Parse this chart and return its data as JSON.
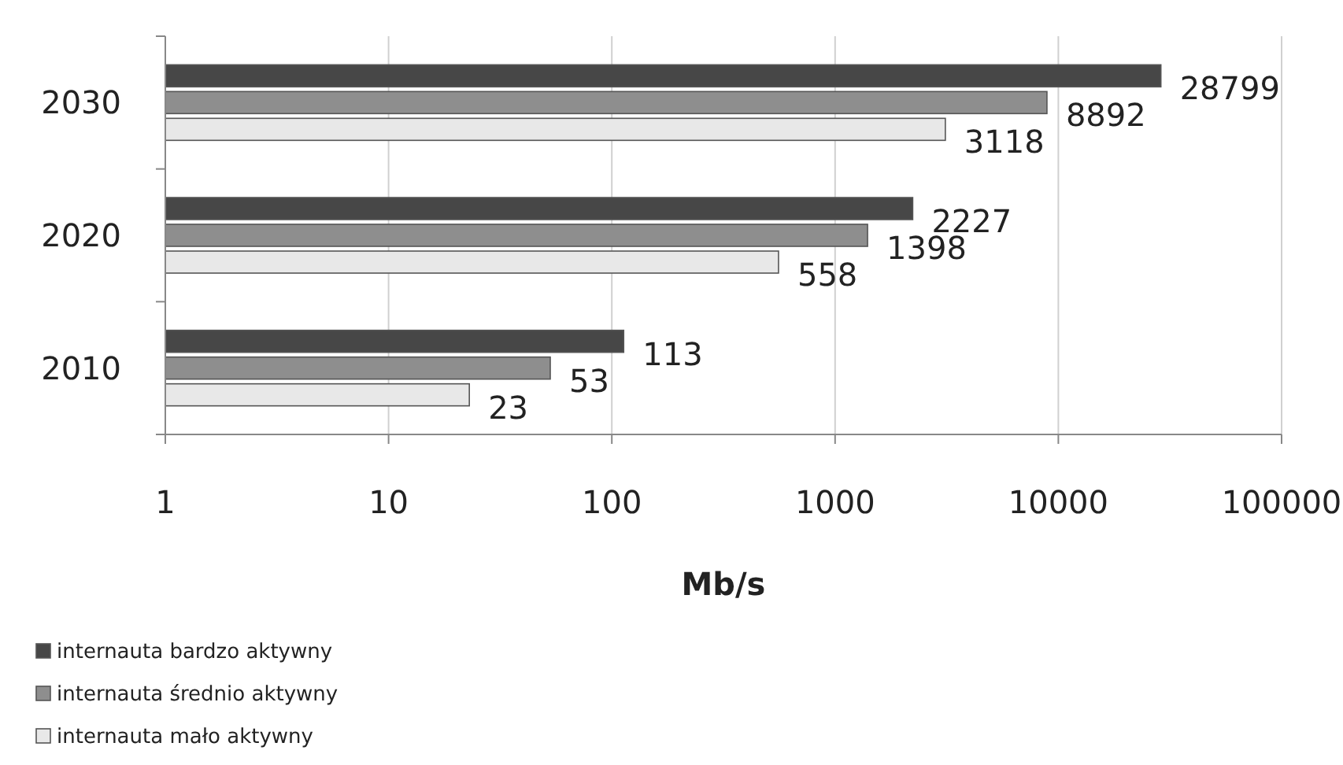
{
  "chart_data": {
    "type": "bar",
    "orientation": "horizontal",
    "xlabel": "Mb/s",
    "categories": [
      "2030",
      "2020",
      "2010"
    ],
    "log": "x",
    "xlim": [
      1,
      100000
    ],
    "xticks": [
      1,
      10,
      100,
      1000,
      10000,
      100000
    ],
    "grid": "x",
    "legend": "bottom",
    "data_labels": true,
    "series": [
      {
        "name": "internauta bardzo aktywny",
        "color": "#474747",
        "values": [
          28799,
          2227,
          113
        ]
      },
      {
        "name": "internauta średnio aktywny",
        "color": "#8e8e8e",
        "values": [
          8892,
          1398,
          53
        ]
      },
      {
        "name": "internauta mało aktywny",
        "color": "#e8e8e8",
        "values": [
          3118,
          558,
          23
        ]
      }
    ]
  }
}
